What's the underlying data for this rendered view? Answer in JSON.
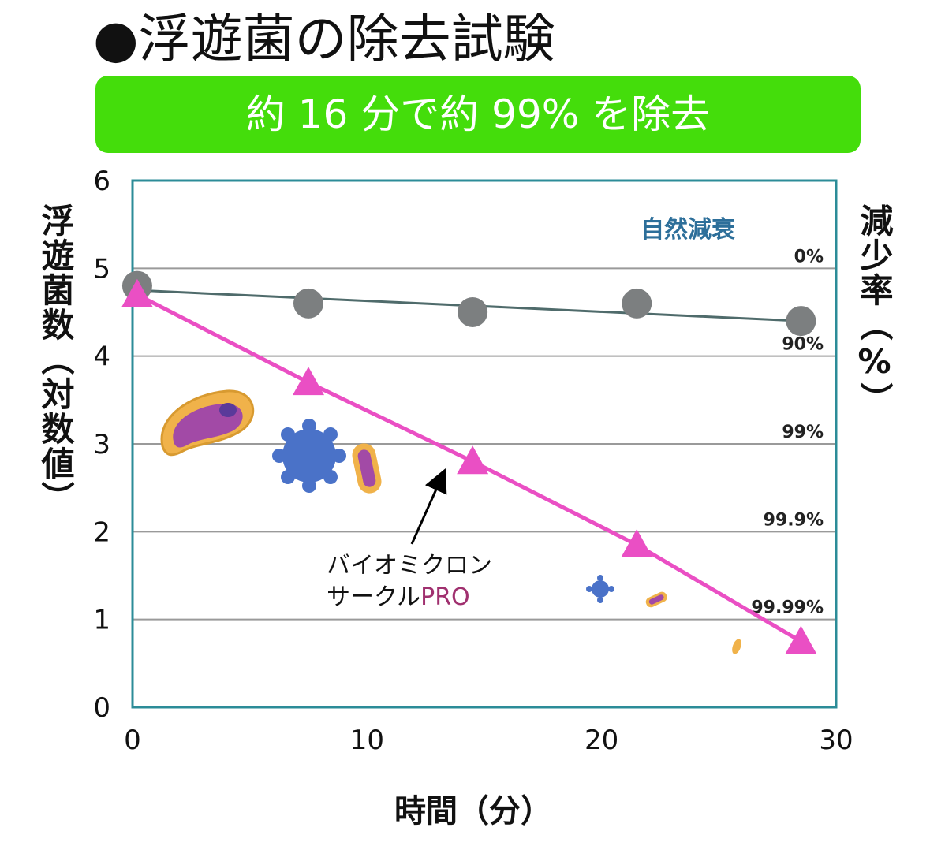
{
  "title": "●浮遊菌の除去試験",
  "banner": "約 16 分で約 99% を除去",
  "colors": {
    "banner": "#44dd0b",
    "axis": "#2c8c98",
    "grid": "#9a9a9a",
    "natural": "#7c7f80",
    "natural_line": "#4f6b6b",
    "product": "#ea4fc4",
    "natural_label": "#2d6f9a",
    "pro_text": "#a0306f"
  },
  "icons": [
    "bacillus-icon",
    "virus-icon",
    "bacterium-icon"
  ],
  "chart_data": {
    "type": "line",
    "xlabel": "時間（分）",
    "ylabel": "浮遊菌数（対数値）",
    "y2label": "減少率（%）",
    "xlim": [
      0,
      30
    ],
    "ylim": [
      0,
      6
    ],
    "x_ticks": [
      "0",
      "10",
      "20",
      "30"
    ],
    "y_ticks": [
      "0",
      "1",
      "2",
      "3",
      "4",
      "5",
      "6"
    ],
    "right_ticks": [
      {
        "label": "0%",
        "y": 5
      },
      {
        "label": "90%",
        "y": 4
      },
      {
        "label": "99%",
        "y": 3
      },
      {
        "label": "99.9%",
        "y": 2
      },
      {
        "label": "99.99%",
        "y": 1
      }
    ],
    "series": [
      {
        "name": "自然減衰",
        "marker": "circle",
        "points": [
          [
            0.2,
            4.8
          ],
          [
            7.5,
            4.6
          ],
          [
            14.5,
            4.5
          ],
          [
            21.5,
            4.6
          ],
          [
            28.5,
            4.4
          ]
        ],
        "fit": [
          [
            0.2,
            4.75
          ],
          [
            28.5,
            4.4
          ]
        ]
      },
      {
        "name": "バイオミクロンサークルPRO",
        "marker": "triangle",
        "points": [
          [
            0.2,
            4.7
          ],
          [
            7.5,
            3.7
          ],
          [
            14.5,
            2.8
          ],
          [
            21.5,
            1.85
          ],
          [
            28.5,
            0.75
          ]
        ]
      }
    ],
    "annotations": {
      "natural_label": "自然減衰",
      "product_line1": "バイオミクロン",
      "product_line2_prefix": "サークル",
      "product_line2_suffix": "PRO"
    }
  }
}
